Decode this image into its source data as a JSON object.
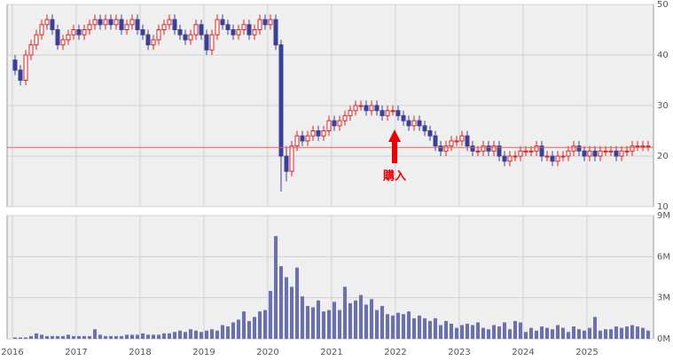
{
  "chart_data": [
    {
      "type": "candlestick",
      "categories": [
        "2016",
        null,
        null,
        null,
        null,
        null,
        null,
        null,
        null,
        null,
        null,
        null,
        "2017",
        null,
        null,
        null,
        null,
        null,
        null,
        null,
        null,
        null,
        null,
        null,
        "2018",
        null,
        null,
        null,
        null,
        null,
        null,
        null,
        null,
        null,
        null,
        null,
        "2019",
        null,
        null,
        null,
        null,
        null,
        null,
        null,
        null,
        null,
        null,
        null,
        "2020",
        null,
        null,
        null,
        null,
        null,
        null,
        null,
        null,
        null,
        null,
        null,
        "2021",
        null,
        null,
        null,
        null,
        null,
        null,
        null,
        null,
        null,
        null,
        null,
        "2022",
        null,
        null,
        null,
        null,
        null,
        null,
        null,
        null,
        null,
        null,
        null,
        "2023",
        null,
        null,
        null,
        null,
        null,
        null,
        null,
        null,
        null,
        null,
        null,
        "2024",
        null,
        null,
        null,
        null,
        null,
        null,
        null,
        null,
        null,
        null,
        null,
        "2025",
        null,
        null,
        null,
        null,
        null,
        null,
        null,
        null,
        null,
        null,
        null
      ],
      "open": [
        39,
        37,
        35,
        40,
        42,
        44,
        46,
        47,
        45,
        42,
        43,
        44,
        45,
        44,
        45,
        46,
        47,
        46,
        47,
        46,
        47,
        45,
        46,
        47,
        45,
        44,
        42,
        43,
        45,
        46,
        47,
        45,
        44,
        43,
        44,
        46,
        44,
        41,
        44,
        47,
        46,
        45,
        44,
        45,
        46,
        44,
        45,
        47,
        46,
        47,
        42,
        20,
        17,
        22,
        24,
        23,
        24,
        25,
        24,
        25,
        27,
        26,
        27,
        28,
        29,
        30,
        30,
        29,
        30,
        29,
        28,
        29,
        29,
        28,
        27,
        26,
        27,
        26,
        25,
        24,
        22,
        21,
        22,
        23,
        23,
        24,
        22,
        21,
        21,
        22,
        21,
        22,
        20,
        19,
        20,
        20,
        21,
        21,
        21,
        22,
        20,
        20,
        19,
        20,
        20,
        21,
        22,
        21,
        20,
        21,
        20,
        21,
        21,
        21,
        20,
        21,
        21,
        22,
        22,
        22
      ],
      "high": [
        40,
        38,
        41,
        43,
        45,
        47,
        48,
        48,
        46,
        44,
        45,
        46,
        46,
        46,
        47,
        48,
        48,
        48,
        48,
        48,
        48,
        47,
        48,
        48,
        46,
        45,
        44,
        46,
        47,
        48,
        48,
        46,
        45,
        45,
        47,
        47,
        45,
        45,
        48,
        48,
        47,
        46,
        46,
        47,
        47,
        46,
        48,
        48,
        48,
        48,
        43,
        22,
        23,
        25,
        25,
        25,
        26,
        26,
        26,
        28,
        28,
        28,
        29,
        30,
        31,
        31,
        31,
        31,
        31,
        30,
        30,
        30,
        30,
        29,
        28,
        28,
        28,
        27,
        26,
        25,
        23,
        23,
        24,
        24,
        25,
        25,
        23,
        22,
        23,
        23,
        23,
        23,
        21,
        21,
        21,
        22,
        22,
        22,
        23,
        23,
        21,
        21,
        21,
        21,
        22,
        23,
        23,
        22,
        22,
        22,
        22,
        22,
        22,
        22,
        22,
        22,
        23,
        23,
        23,
        23
      ],
      "low": [
        36,
        34,
        34,
        39,
        41,
        43,
        45,
        44,
        41,
        41,
        42,
        43,
        43,
        43,
        44,
        45,
        45,
        45,
        45,
        45,
        44,
        44,
        45,
        44,
        43,
        41,
        41,
        42,
        44,
        45,
        44,
        43,
        42,
        42,
        43,
        43,
        40,
        40,
        43,
        45,
        44,
        43,
        43,
        44,
        43,
        43,
        44,
        45,
        45,
        41,
        13,
        15,
        16,
        21,
        22,
        22,
        23,
        23,
        23,
        24,
        25,
        25,
        26,
        27,
        28,
        29,
        28,
        28,
        28,
        27,
        27,
        28,
        27,
        26,
        25,
        25,
        25,
        24,
        23,
        21,
        20,
        20,
        21,
        22,
        22,
        21,
        20,
        20,
        20,
        20,
        20,
        19,
        18,
        18,
        19,
        19,
        20,
        20,
        20,
        19,
        19,
        18,
        18,
        19,
        19,
        20,
        20,
        19,
        19,
        19,
        19,
        20,
        20,
        19,
        19,
        20,
        20,
        21,
        21,
        21
      ],
      "close": [
        37,
        35,
        40,
        42,
        44,
        46,
        47,
        45,
        42,
        43,
        44,
        45,
        44,
        45,
        46,
        47,
        46,
        47,
        46,
        47,
        45,
        46,
        47,
        45,
        44,
        42,
        43,
        45,
        46,
        47,
        45,
        44,
        43,
        44,
        46,
        44,
        41,
        44,
        47,
        46,
        45,
        44,
        45,
        46,
        44,
        45,
        47,
        46,
        47,
        42,
        20,
        17,
        22,
        24,
        23,
        24,
        25,
        24,
        25,
        27,
        26,
        27,
        28,
        29,
        30,
        30,
        29,
        30,
        29,
        28,
        29,
        29,
        28,
        27,
        26,
        27,
        26,
        25,
        24,
        22,
        21,
        22,
        23,
        23,
        24,
        22,
        21,
        21,
        22,
        21,
        22,
        20,
        19,
        20,
        20,
        21,
        21,
        21,
        22,
        20,
        20,
        19,
        20,
        20,
        21,
        22,
        21,
        20,
        21,
        20,
        21,
        21,
        21,
        20,
        21,
        21,
        22,
        22,
        22,
        22
      ],
      "up_color": "#dd2222",
      "down_color": "#3b3f9c",
      "ylim": [
        10,
        50
      ],
      "yticks": [
        10,
        20,
        30,
        40,
        50
      ],
      "reference_line": 21.7,
      "reference_color": "#e06060",
      "annotation": "購入",
      "annotation_index": 72,
      "annotation_color": "#ee0000",
      "grid": true
    },
    {
      "type": "bar",
      "values": [
        0.1,
        0.1,
        0.1,
        0.2,
        0.4,
        0.3,
        0.2,
        0.2,
        0.2,
        0.2,
        0.3,
        0.2,
        0.2,
        0.2,
        0.2,
        0.7,
        0.3,
        0.2,
        0.2,
        0.2,
        0.2,
        0.3,
        0.3,
        0.3,
        0.4,
        0.3,
        0.3,
        0.3,
        0.4,
        0.4,
        0.5,
        0.6,
        0.5,
        0.7,
        0.6,
        0.5,
        0.6,
        0.7,
        0.6,
        1.0,
        0.9,
        1.2,
        1.4,
        2.0,
        1.3,
        1.6,
        2.0,
        2.1,
        3.5,
        7.5,
        5.3,
        4.5,
        3.8,
        5.2,
        3.1,
        2.4,
        2.3,
        2.8,
        2.0,
        2.1,
        2.7,
        2.1,
        3.8,
        2.6,
        2.8,
        3.2,
        2.5,
        2.9,
        2.1,
        2.4,
        1.8,
        1.7,
        1.9,
        1.8,
        2.0,
        1.5,
        1.7,
        1.5,
        1.3,
        1.5,
        1.0,
        1.3,
        1.1,
        0.8,
        1.0,
        1.1,
        1.0,
        1.2,
        0.8,
        0.7,
        1.0,
        0.9,
        1.2,
        0.7,
        1.3,
        1.2,
        0.5,
        0.8,
        0.6,
        0.9,
        0.8,
        0.7,
        1.0,
        0.8,
        0.5,
        0.9,
        0.7,
        0.6,
        0.8,
        1.6,
        0.6,
        0.7,
        0.7,
        0.9,
        0.8,
        0.9,
        1.0,
        0.9,
        0.8,
        0.6
      ],
      "color": "#6a70b8",
      "ylim": [
        0,
        9
      ],
      "yticks": [
        {
          "value": 0,
          "label": "0M"
        },
        {
          "value": 3,
          "label": "3M"
        },
        {
          "value": 6,
          "label": "6M"
        },
        {
          "value": 9,
          "label": "9M"
        }
      ],
      "grid": true
    }
  ]
}
